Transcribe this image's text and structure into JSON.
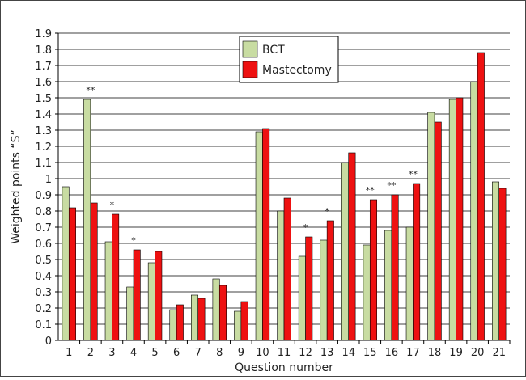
{
  "chart_data": {
    "type": "bar",
    "xlabel": "Question number",
    "ylabel": "Weighted points “S”",
    "ylim": [
      0,
      1.9
    ],
    "ytick_step": 0.1,
    "grid": "horizontal",
    "legend_position": "top-center",
    "categories": [
      "1",
      "2",
      "3",
      "4",
      "5",
      "6",
      "7",
      "8",
      "9",
      "10",
      "11",
      "12",
      "13",
      "14",
      "15",
      "16",
      "17",
      "18",
      "19",
      "20",
      "21"
    ],
    "series": [
      {
        "name": "BCT",
        "color": "#c8dca2",
        "values": [
          0.95,
          1.49,
          0.61,
          0.33,
          0.48,
          0.19,
          0.28,
          0.38,
          0.18,
          1.29,
          0.8,
          0.52,
          0.62,
          1.1,
          0.59,
          0.68,
          0.7,
          1.41,
          1.49,
          1.6,
          0.98
        ]
      },
      {
        "name": "Mastectomy",
        "color": "#ee1111",
        "values": [
          0.82,
          0.85,
          0.78,
          0.56,
          0.55,
          0.22,
          0.26,
          0.34,
          0.24,
          1.31,
          0.88,
          0.64,
          0.74,
          1.16,
          0.87,
          0.9,
          0.97,
          1.35,
          1.5,
          1.78,
          0.94
        ]
      }
    ],
    "significance": [
      {
        "category": "2",
        "marker": "**"
      },
      {
        "category": "3",
        "marker": "*"
      },
      {
        "category": "4",
        "marker": "*"
      },
      {
        "category": "12",
        "marker": "*"
      },
      {
        "category": "13",
        "marker": "*"
      },
      {
        "category": "15",
        "marker": "**"
      },
      {
        "category": "16",
        "marker": "**"
      },
      {
        "category": "17",
        "marker": "**"
      }
    ]
  }
}
